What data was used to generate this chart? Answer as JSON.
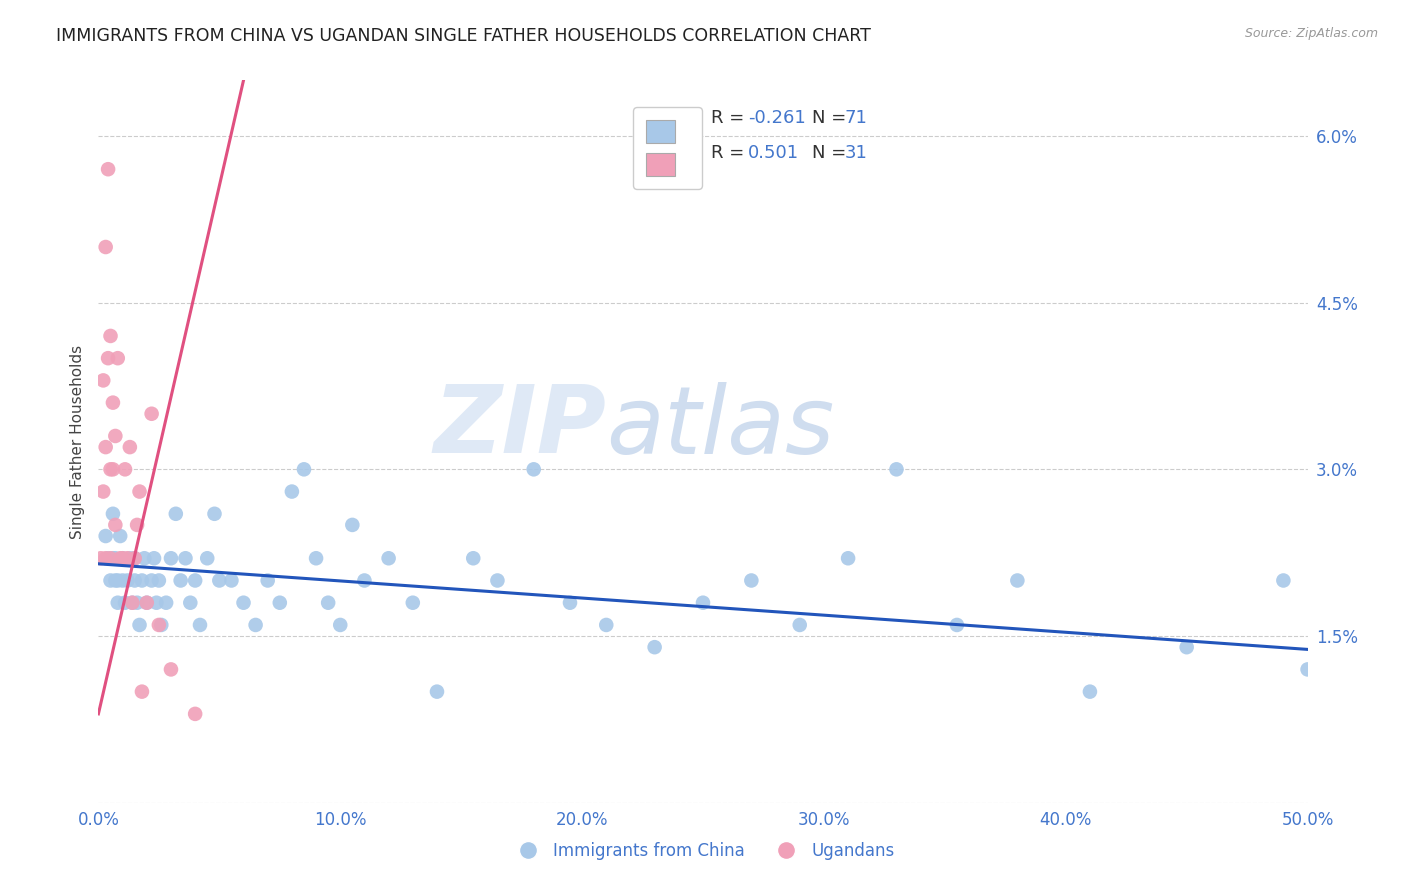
{
  "title": "IMMIGRANTS FROM CHINA VS UGANDAN SINGLE FATHER HOUSEHOLDS CORRELATION CHART",
  "source": "Source: ZipAtlas.com",
  "ylabel": "Single Father Households",
  "xmin": 0.0,
  "xmax": 0.5,
  "ymin": 0.0,
  "ymax": 0.065,
  "yticks": [
    0.0,
    0.015,
    0.03,
    0.045,
    0.06
  ],
  "ytick_labels": [
    "",
    "1.5%",
    "3.0%",
    "4.5%",
    "6.0%"
  ],
  "xticks": [
    0.0,
    0.1,
    0.2,
    0.3,
    0.4,
    0.5
  ],
  "xtick_labels": [
    "0.0%",
    "10.0%",
    "20.0%",
    "30.0%",
    "40.0%",
    "50.0%"
  ],
  "color_blue": "#a8c8e8",
  "color_pink": "#f0a0b8",
  "line_blue": "#2255bb",
  "line_pink": "#e05080",
  "watermark_zip": "ZIP",
  "watermark_atlas": "atlas",
  "blue_scatter_x": [
    0.003,
    0.004,
    0.005,
    0.006,
    0.006,
    0.007,
    0.007,
    0.008,
    0.008,
    0.009,
    0.01,
    0.01,
    0.011,
    0.012,
    0.013,
    0.014,
    0.015,
    0.015,
    0.016,
    0.017,
    0.018,
    0.019,
    0.02,
    0.022,
    0.023,
    0.024,
    0.025,
    0.026,
    0.028,
    0.03,
    0.032,
    0.034,
    0.036,
    0.038,
    0.04,
    0.042,
    0.045,
    0.048,
    0.05,
    0.055,
    0.06,
    0.065,
    0.07,
    0.075,
    0.08,
    0.085,
    0.09,
    0.095,
    0.1,
    0.105,
    0.11,
    0.12,
    0.13,
    0.14,
    0.155,
    0.165,
    0.18,
    0.195,
    0.21,
    0.23,
    0.25,
    0.27,
    0.29,
    0.31,
    0.33,
    0.355,
    0.38,
    0.41,
    0.45,
    0.49,
    0.5
  ],
  "blue_scatter_y": [
    0.024,
    0.022,
    0.02,
    0.022,
    0.026,
    0.02,
    0.022,
    0.018,
    0.02,
    0.024,
    0.02,
    0.022,
    0.018,
    0.02,
    0.022,
    0.018,
    0.02,
    0.022,
    0.018,
    0.016,
    0.02,
    0.022,
    0.018,
    0.02,
    0.022,
    0.018,
    0.02,
    0.016,
    0.018,
    0.022,
    0.026,
    0.02,
    0.022,
    0.018,
    0.02,
    0.016,
    0.022,
    0.026,
    0.02,
    0.02,
    0.018,
    0.016,
    0.02,
    0.018,
    0.028,
    0.03,
    0.022,
    0.018,
    0.016,
    0.025,
    0.02,
    0.022,
    0.018,
    0.01,
    0.022,
    0.02,
    0.03,
    0.018,
    0.016,
    0.014,
    0.018,
    0.02,
    0.016,
    0.022,
    0.03,
    0.016,
    0.02,
    0.01,
    0.014,
    0.02,
    0.012
  ],
  "pink_scatter_x": [
    0.001,
    0.002,
    0.002,
    0.003,
    0.003,
    0.003,
    0.004,
    0.004,
    0.005,
    0.005,
    0.005,
    0.006,
    0.006,
    0.007,
    0.007,
    0.008,
    0.009,
    0.01,
    0.011,
    0.012,
    0.013,
    0.014,
    0.015,
    0.016,
    0.017,
    0.018,
    0.02,
    0.022,
    0.025,
    0.03,
    0.04
  ],
  "pink_scatter_y": [
    0.022,
    0.028,
    0.038,
    0.022,
    0.032,
    0.05,
    0.04,
    0.057,
    0.022,
    0.03,
    0.042,
    0.03,
    0.036,
    0.033,
    0.025,
    0.04,
    0.022,
    0.022,
    0.03,
    0.022,
    0.032,
    0.018,
    0.022,
    0.025,
    0.028,
    0.01,
    0.018,
    0.035,
    0.016,
    0.012,
    0.008
  ],
  "blue_line_x": [
    0.0,
    0.5
  ],
  "blue_line_y": [
    0.0215,
    0.0138
  ],
  "pink_line_x": [
    0.0,
    0.06
  ],
  "pink_line_y": [
    0.008,
    0.065
  ]
}
